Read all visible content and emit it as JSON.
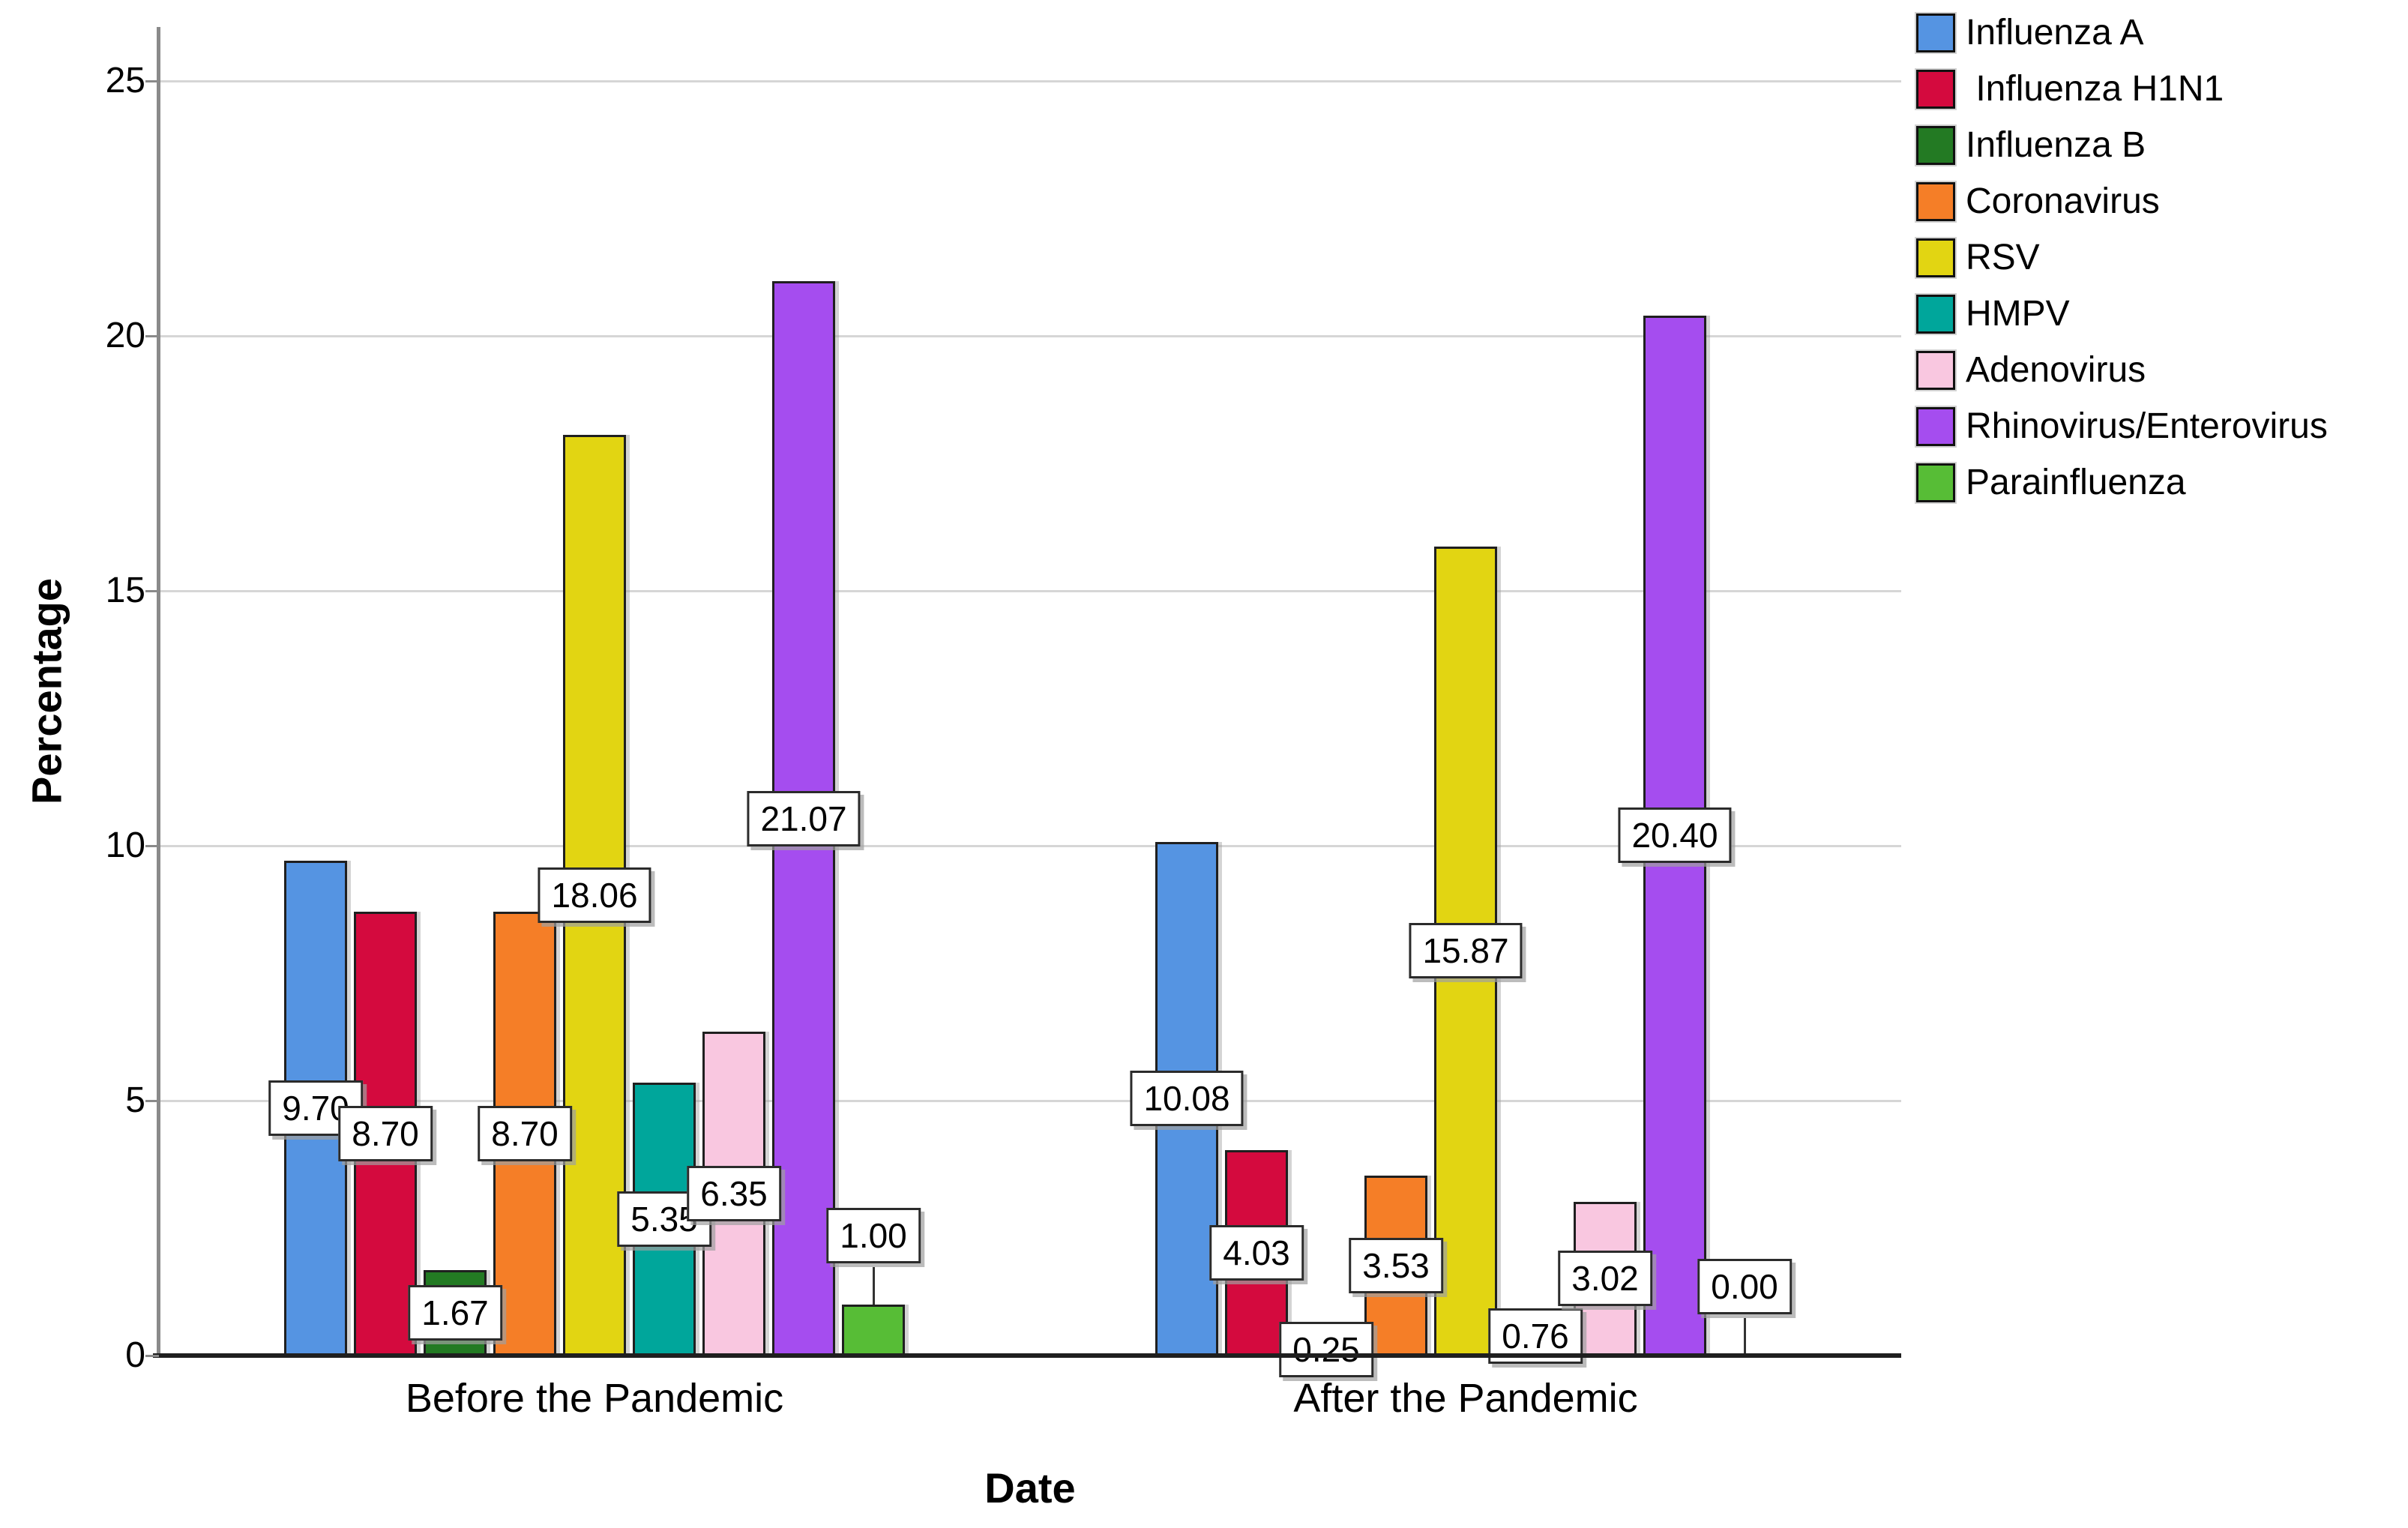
{
  "chart_data": {
    "type": "bar",
    "title": "",
    "xlabel": "Date",
    "ylabel": "Percentage",
    "categories": [
      "Before the Pandemic",
      "After the Pandemic"
    ],
    "y_ticks": [
      0,
      5,
      10,
      15,
      20,
      25
    ],
    "ylim": [
      0,
      26
    ],
    "grid": true,
    "legend_position": "top-right",
    "value_label_decimals": 2,
    "series": [
      {
        "name": "Influenza A",
        "color": "#5594e2",
        "values": [
          9.7,
          10.08
        ]
      },
      {
        "name": " Influenza H1N1",
        "color": "#d40a3e",
        "values": [
          8.7,
          4.03
        ]
      },
      {
        "name": "Influenza B",
        "color": "#237a23",
        "values": [
          1.67,
          0.25
        ]
      },
      {
        "name": "Coronavirus",
        "color": "#f57e27",
        "values": [
          8.7,
          3.53
        ]
      },
      {
        "name": "RSV",
        "color": "#e2d512",
        "values": [
          18.06,
          15.87
        ]
      },
      {
        "name": "HMPV",
        "color": "#00a69b",
        "values": [
          5.35,
          0.76
        ]
      },
      {
        "name": "Adenovirus",
        "color": "#f9c7e0",
        "values": [
          6.35,
          3.02
        ]
      },
      {
        "name": "Rhinovirus/Enterovirus",
        "color": "#a54def",
        "values": [
          21.07,
          20.4
        ]
      },
      {
        "name": "Parainfluenza",
        "color": "#57bd36",
        "values": [
          1.0,
          0.0
        ],
        "lifted_labels": [
          true,
          true
        ]
      }
    ]
  },
  "style_colors": {
    "x_axis": "#1f1f1f",
    "y_axis": "#8a8a8a",
    "gridline": "#d6d6d6",
    "bar_border": "#1f1f1f",
    "label_box_bg": "#ffffff",
    "label_box_border": "#2b2b2b",
    "text": "#000000"
  }
}
